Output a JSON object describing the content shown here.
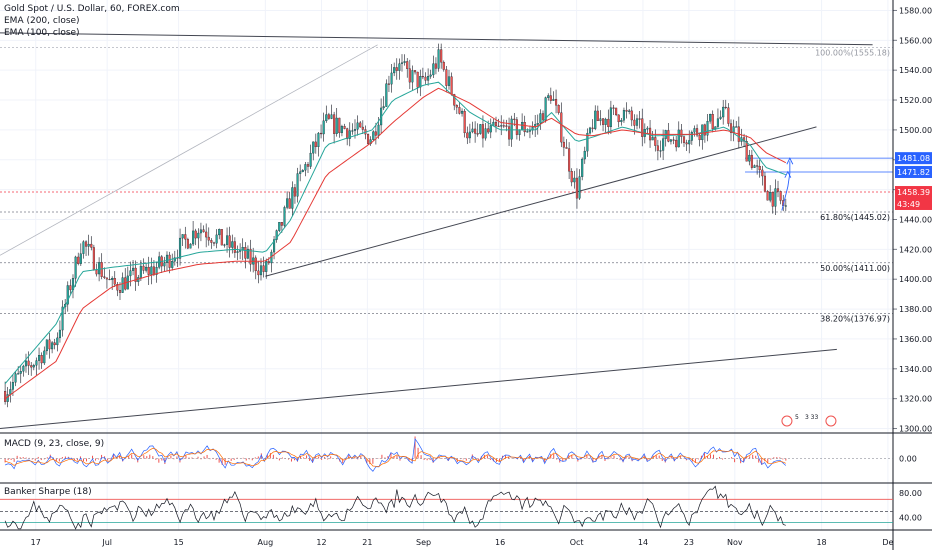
{
  "header": {
    "title": "Gold Spot / U.S. Dollar, 60, FOREX.com",
    "ema200_label": "EMA (200, close)",
    "ema100_label": "EMA (100, close)",
    "macd_label": "MACD (9, 23, close, 9)",
    "bs_label": "Banker Sharpe (18)"
  },
  "colors": {
    "candle_up": "#26a69a",
    "candle_down": "#ef5350",
    "ema_teal": "#26a69a",
    "ema_red": "#e53935",
    "trend_line": "#434651",
    "fib_line": "#787b86",
    "price_dashed_red": "#f23645",
    "level_blue": "#2962ff",
    "macd_hist": "#ef5350",
    "grid": "#f0f3fa"
  },
  "chart_data": [
    {
      "type": "candlestick",
      "title": "Gold Spot / U.S. Dollar, 60, FOREX.com",
      "price_ticks": [
        1300,
        1320,
        1340,
        1360,
        1380,
        1400,
        1420,
        1440,
        1460,
        1480,
        1500,
        1520,
        1540,
        1560,
        1580
      ],
      "price_tick_labels": [
        "1300.00",
        "1320.00",
        "1340.00",
        "1360.00",
        "1380.00",
        "1400.00",
        "1420.00",
        "1440.00",
        "1460.00",
        "1480.00",
        "1500.00",
        "1520.00",
        "1540.00",
        "1560.00",
        "1580.00"
      ],
      "ylim": [
        1297,
        1587
      ],
      "time_labels": [
        "17",
        "Jul",
        "15",
        "Aug",
        "12",
        "21",
        "Sep",
        "16",
        "Oct",
        "14",
        "23",
        "Nov",
        "18",
        "De"
      ],
      "series_anchors": {
        "x": [
          "Jun 11",
          "Jun 21",
          "Jun 26",
          "Jul 2",
          "Jul 12",
          "Jul 19",
          "Jul 26",
          "Aug 1",
          "Aug 6",
          "Aug 13",
          "Aug 22",
          "Aug 26",
          "Sep 1",
          "Sep 4",
          "Sep 10",
          "Sep 16",
          "Sep 23",
          "Sep 26",
          "Oct 1",
          "Oct 4",
          "Oct 10",
          "Oct 16",
          "Oct 24",
          "Oct 30",
          "Nov 4",
          "Nov 7",
          "Nov 11"
        ],
        "close": [
          1325,
          1360,
          1425,
          1395,
          1410,
          1435,
          1420,
          1405,
          1455,
          1505,
          1495,
          1545,
          1530,
          1548,
          1495,
          1500,
          1502,
          1525,
          1458,
          1505,
          1512,
          1492,
          1498,
          1510,
          1482,
          1460,
          1448
        ]
      },
      "ema100_anchors": [
        1330,
        1370,
        1405,
        1408,
        1412,
        1418,
        1420,
        1418,
        1440,
        1490,
        1500,
        1520,
        1530,
        1532,
        1512,
        1500,
        1500,
        1512,
        1492,
        1495,
        1502,
        1496,
        1497,
        1502,
        1490,
        1475,
        1470
      ],
      "ema200_anchors": [
        1320,
        1345,
        1380,
        1395,
        1405,
        1410,
        1412,
        1412,
        1425,
        1470,
        1492,
        1505,
        1522,
        1528,
        1518,
        1505,
        1502,
        1508,
        1497,
        1496,
        1500,
        1497,
        1497,
        1500,
        1495,
        1485,
        1478
      ],
      "annotations": {
        "fib_100": "100.00%(1555.18)",
        "fib_618": "61.80%(1445.02)",
        "fib_50": "50.00%(1411.00)",
        "fib_382": "38.20%(1376.97)",
        "level_1481": "1481.08",
        "level_1471": "1471.82",
        "current_price": "1458.39",
        "countdown": "43:49"
      },
      "levels": {
        "fib_100": 1555.18,
        "fib_618": 1445.02,
        "fib_50": 1411.0,
        "fib_382": 1376.97,
        "current_price": 1458.39,
        "level_1481": 1481.08,
        "level_1471": 1471.82
      },
      "trendlines": [
        {
          "from": [
            "Jun 10",
            1565
          ],
          "to": [
            "Nov 28",
            1557
          ]
        },
        {
          "from": [
            "Jun 10",
            1300
          ],
          "to": [
            "Nov 21",
            1353
          ]
        },
        {
          "from": [
            "Aug 1",
            1402
          ],
          "to": [
            "Nov 17",
            1502
          ]
        },
        {
          "from": [
            "Jun 10",
            1416
          ],
          "to": [
            "Aug 23",
            1557
          ]
        }
      ],
      "event_flags": [
        "5",
        "3 33"
      ]
    },
    {
      "type": "line",
      "title": "MACD (9, 23, close, 9)",
      "tick_labels": [
        "0.00"
      ],
      "ylim": [
        -15,
        15
      ]
    },
    {
      "type": "line",
      "title": "Banker Sharpe (18)",
      "tick_labels": [
        "80.00",
        "40.00"
      ],
      "ylim": [
        20,
        95
      ],
      "reference_levels": [
        70,
        50,
        32
      ]
    }
  ]
}
